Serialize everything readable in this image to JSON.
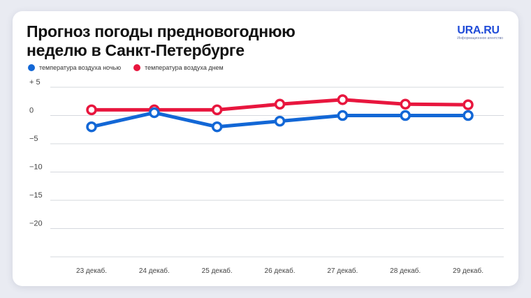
{
  "title": "Прогноз погоды предновогоднюю\nнеделю в Санкт-Петербурге",
  "logo": {
    "name": "URA.RU",
    "tagline": "Информационное агентство"
  },
  "colors": {
    "night": "#1267d6",
    "day": "#e8163e",
    "grid": "#d6d8de"
  },
  "chart_data": {
    "type": "line",
    "title": "Прогноз погоды предновогоднюю неделю в Санкт-Петербурге",
    "categories": [
      "23 декаб.",
      "24 декаб.",
      "25 декаб.",
      "26 декаб.",
      "27 декаб.",
      "28 декаб.",
      "29 декаб."
    ],
    "series": [
      {
        "name": "температура воздуха ночью",
        "values": [
          -2,
          0.5,
          -2,
          -1,
          0,
          0,
          0
        ]
      },
      {
        "name": "температура воздуха днем",
        "values": [
          1,
          1,
          1,
          2,
          2.8,
          2,
          1.9
        ]
      }
    ],
    "y_ticks": [
      5,
      0,
      -5,
      -10,
      -15,
      -20
    ],
    "y_tick_labels": [
      "+ 5",
      "0",
      "−5",
      "−10",
      "−15",
      "−20"
    ],
    "ylim": [
      -25,
      5
    ],
    "grid": true,
    "legend_position": "top-left"
  }
}
